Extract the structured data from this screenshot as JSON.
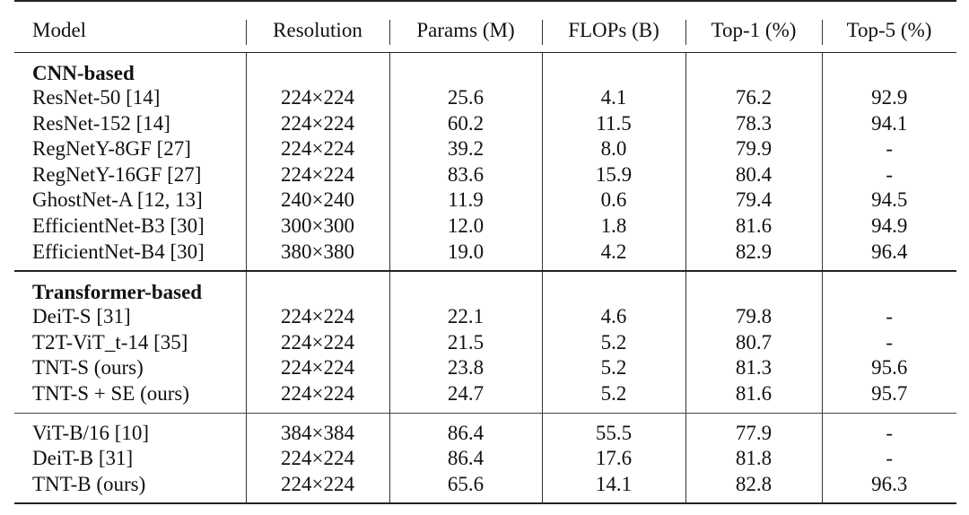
{
  "table": {
    "headers": [
      "Model",
      "Resolution",
      "Params (M)",
      "FLOPs (B)",
      "Top-1 (%)",
      "Top-5 (%)"
    ],
    "groups": [
      {
        "title": "CNN-based",
        "rows": [
          [
            "ResNet-50 [14]",
            "224×224",
            "25.6",
            "4.1",
            "76.2",
            "92.9"
          ],
          [
            "ResNet-152 [14]",
            "224×224",
            "60.2",
            "11.5",
            "78.3",
            "94.1"
          ],
          [
            "RegNetY-8GF [27]",
            "224×224",
            "39.2",
            "8.0",
            "79.9",
            "-"
          ],
          [
            "RegNetY-16GF [27]",
            "224×224",
            "83.6",
            "15.9",
            "80.4",
            "-"
          ],
          [
            "GhostNet-A [12, 13]",
            "240×240",
            "11.9",
            "0.6",
            "79.4",
            "94.5"
          ],
          [
            "EfficientNet-B3 [30]",
            "300×300",
            "12.0",
            "1.8",
            "81.6",
            "94.9"
          ],
          [
            "EfficientNet-B4 [30]",
            "380×380",
            "19.0",
            "4.2",
            "82.9",
            "96.4"
          ]
        ]
      },
      {
        "title": "Transformer-based",
        "rows": [
          [
            "DeiT-S [31]",
            "224×224",
            "22.1",
            "4.6",
            "79.8",
            "-"
          ],
          [
            "T2T-ViT_t-14 [35]",
            "224×224",
            "21.5",
            "5.2",
            "80.7",
            "-"
          ],
          [
            "TNT-S (ours)",
            "224×224",
            "23.8",
            "5.2",
            "81.3",
            "95.6"
          ],
          [
            "TNT-S + SE (ours)",
            "224×224",
            "24.7",
            "5.2",
            "81.6",
            "95.7"
          ]
        ]
      },
      {
        "title": "",
        "rows": [
          [
            "ViT-B/16 [10]",
            "384×384",
            "86.4",
            "55.5",
            "77.9",
            "-"
          ],
          [
            "DeiT-B [31]",
            "224×224",
            "86.4",
            "17.6",
            "81.8",
            "-"
          ],
          [
            "TNT-B (ours)",
            "224×224",
            "65.6",
            "14.1",
            "82.8",
            "96.3"
          ]
        ]
      }
    ]
  }
}
